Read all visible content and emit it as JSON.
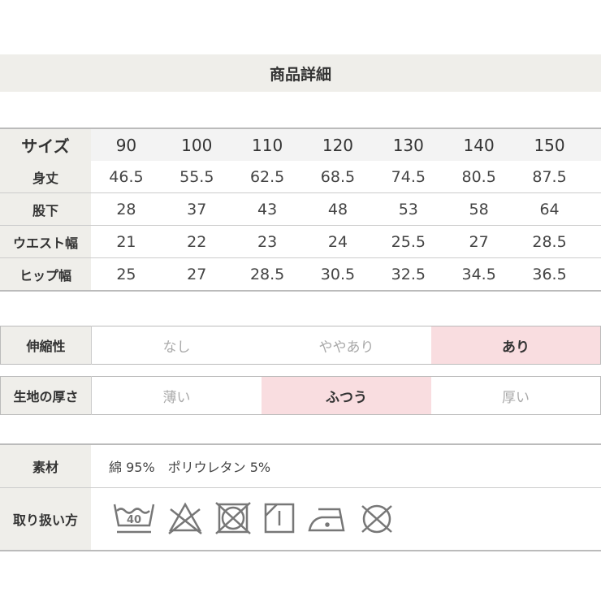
{
  "title": "商品詳細",
  "size_table": {
    "header": {
      "label": "サイズ",
      "values": [
        "90",
        "100",
        "110",
        "120",
        "130",
        "140",
        "150"
      ]
    },
    "rows": [
      {
        "label": "身丈",
        "values": [
          "46.5",
          "55.5",
          "62.5",
          "68.5",
          "74.5",
          "80.5",
          "87.5"
        ]
      },
      {
        "label": "股下",
        "values": [
          "28",
          "37",
          "43",
          "48",
          "53",
          "58",
          "64"
        ]
      },
      {
        "label": "ウエスト幅",
        "values": [
          "21",
          "22",
          "23",
          "24",
          "25.5",
          "27",
          "28.5"
        ]
      },
      {
        "label": "ヒップ幅",
        "values": [
          "25",
          "27",
          "28.5",
          "30.5",
          "32.5",
          "34.5",
          "36.5"
        ]
      }
    ]
  },
  "stretch": {
    "label": "伸縮性",
    "options": [
      "なし",
      "ややあり",
      "あり"
    ],
    "selected": "あり"
  },
  "thickness": {
    "label": "生地の厚さ",
    "options": [
      "薄い",
      "ふつう",
      "厚い"
    ],
    "selected": "ふつう"
  },
  "material": {
    "label": "素材",
    "value": "綿 95%　ポリウレタン 5%"
  },
  "care": {
    "label": "取り扱い方",
    "wash_temp": "40",
    "icons": [
      "wash-40-icon",
      "no-bleach-icon",
      "no-tumble-dry-icon",
      "drip-dry-shade-icon",
      "iron-low-icon",
      "no-dry-clean-icon"
    ]
  },
  "colors": {
    "label_bg": "#efeeea",
    "selected_bg": "#f9dde0"
  }
}
